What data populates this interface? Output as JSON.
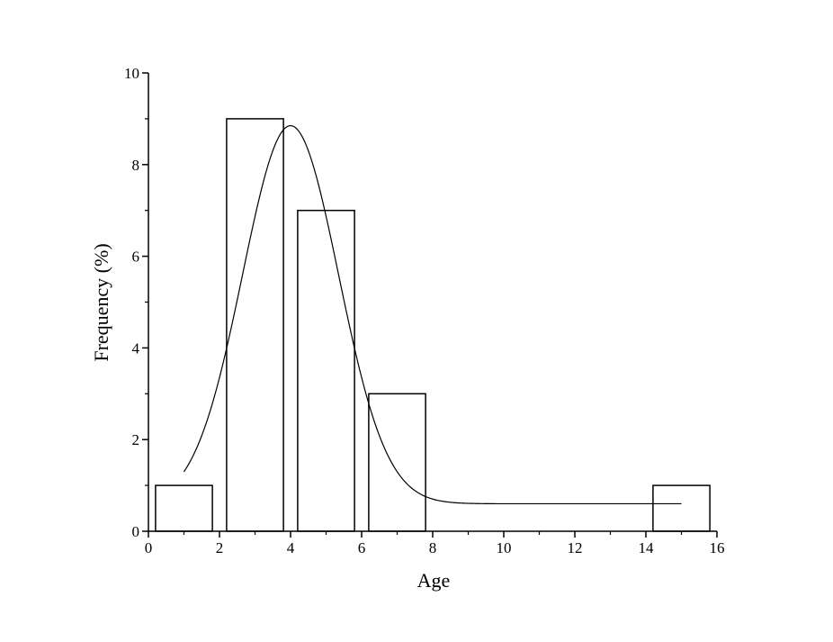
{
  "chart_data": {
    "type": "bar",
    "xlabel": "Age",
    "ylabel": "Frequency (%)",
    "xlim": [
      0,
      16
    ],
    "ylim": [
      0,
      10
    ],
    "x_ticks": [
      0,
      2,
      4,
      6,
      8,
      10,
      12,
      14,
      16
    ],
    "y_ticks": [
      0,
      2,
      4,
      6,
      8,
      10
    ],
    "grid": false,
    "legend": "none",
    "bars": [
      {
        "x_start": 0.2,
        "x_end": 1.8,
        "value": 1
      },
      {
        "x_start": 2.2,
        "x_end": 3.8,
        "value": 9
      },
      {
        "x_start": 4.2,
        "x_end": 5.8,
        "value": 7
      },
      {
        "x_start": 6.2,
        "x_end": 7.8,
        "value": 3
      },
      {
        "x_start": 14.2,
        "x_end": 15.8,
        "value": 1
      }
    ],
    "fit_curve": {
      "type": "gaussian",
      "x_range": [
        1,
        15
      ],
      "baseline": 0.6,
      "amplitude": 8.25,
      "center": 4.0,
      "sigma": 1.35
    },
    "colors": {
      "bar_stroke": "#000000",
      "bar_fill": "#ffffff",
      "curve": "#000000",
      "axis": "#000000"
    }
  }
}
